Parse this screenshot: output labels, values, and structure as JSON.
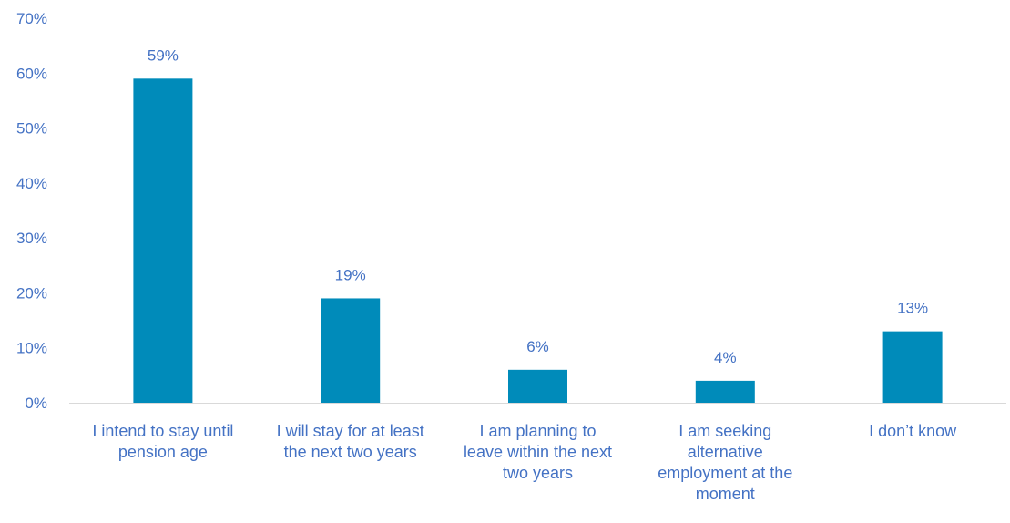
{
  "chart_data": {
    "type": "bar",
    "categories": [
      [
        "I intend to stay until",
        "pension age"
      ],
      [
        "I will stay for at least",
        "the next two years"
      ],
      [
        "I am planning to",
        "leave within the next",
        "two years"
      ],
      [
        "I am seeking",
        "alternative",
        "employment at the",
        "moment"
      ],
      [
        "I don’t know"
      ]
    ],
    "values": [
      59,
      19,
      6,
      4,
      13
    ],
    "data_labels": [
      "59%",
      "19%",
      "6%",
      "4%",
      "13%"
    ],
    "title": "",
    "xlabel": "",
    "ylabel": "",
    "ylim": [
      0,
      70
    ],
    "yticks": [
      {
        "value": 0,
        "label": "0%"
      },
      {
        "value": 10,
        "label": "10%"
      },
      {
        "value": 20,
        "label": "20%"
      },
      {
        "value": 30,
        "label": "30%"
      },
      {
        "value": 40,
        "label": "40%"
      },
      {
        "value": 50,
        "label": "50%"
      },
      {
        "value": 60,
        "label": "60%"
      },
      {
        "value": 70,
        "label": "70%"
      }
    ],
    "grid": false,
    "legend": "none",
    "bar_color": "#008BBA",
    "text_color": "#4472C4",
    "axis_color": "#D9D9D9"
  }
}
